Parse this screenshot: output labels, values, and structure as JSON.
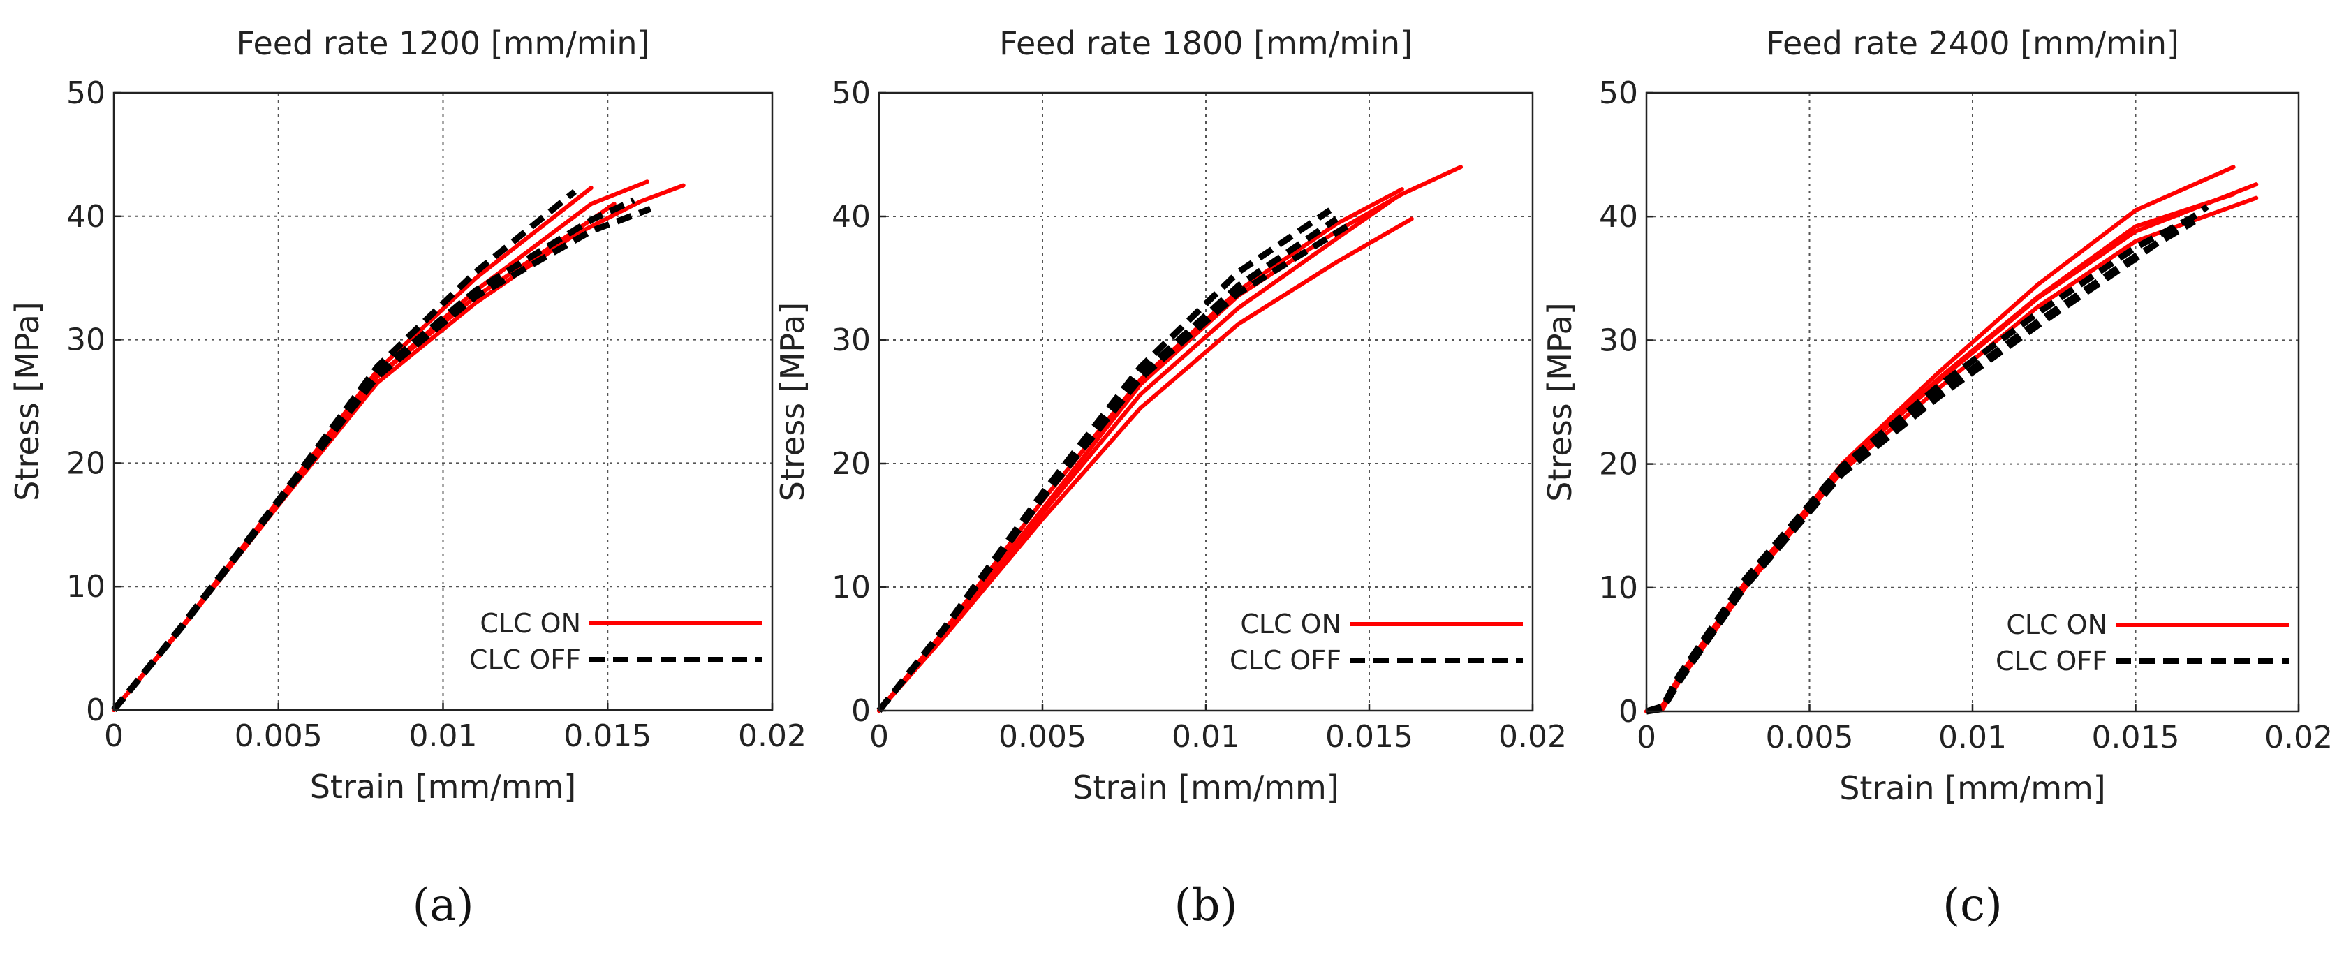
{
  "chart_data": [
    {
      "type": "line",
      "panel_label": "(a)",
      "title": "Feed rate 1200 [mm/min]",
      "xlabel": "Strain [mm/mm]",
      "ylabel": "Stress [MPa]",
      "xlim": [
        0,
        0.02
      ],
      "ylim": [
        0,
        50
      ],
      "xticks": [
        0,
        0.005,
        0.01,
        0.015,
        0.02
      ],
      "xtick_labels": [
        "0",
        "0.005",
        "0.01",
        "0.015",
        "0.02"
      ],
      "yticks": [
        0,
        10,
        20,
        30,
        40,
        50
      ],
      "ytick_labels": [
        "0",
        "10",
        "20",
        "30",
        "40",
        "50"
      ],
      "grid": true,
      "legend": {
        "position": "bottom-right",
        "entries": [
          {
            "label": "CLC ON",
            "color": "#ff0000",
            "style": "solid"
          },
          {
            "label": "CLC OFF",
            "color": "#000000",
            "style": "dashed"
          }
        ]
      },
      "series": [
        {
          "name": "CLC ON",
          "color": "#ff0000",
          "style": "solid",
          "x": [
            0,
            0.002,
            0.005,
            0.008,
            0.011,
            0.0145
          ],
          "y": [
            0,
            6.5,
            17,
            27.5,
            35,
            42.3
          ]
        },
        {
          "name": "CLC ON",
          "color": "#ff0000",
          "style": "solid",
          "x": [
            0,
            0.002,
            0.005,
            0.008,
            0.011,
            0.0145,
            0.0162
          ],
          "y": [
            0,
            6.4,
            16.8,
            27,
            34,
            41,
            42.8
          ]
        },
        {
          "name": "CLC ON",
          "color": "#ff0000",
          "style": "solid",
          "x": [
            0,
            0.002,
            0.005,
            0.008,
            0.011,
            0.014,
            0.016,
            0.0173
          ],
          "y": [
            0,
            6.4,
            16.6,
            26.5,
            33,
            38.5,
            41.2,
            42.5
          ]
        },
        {
          "name": "CLC ON",
          "color": "#ff0000",
          "style": "solid",
          "x": [
            0,
            0.002,
            0.005,
            0.008,
            0.011,
            0.014,
            0.0152
          ],
          "y": [
            0,
            6.5,
            16.9,
            27,
            33.5,
            38.8,
            41
          ]
        },
        {
          "name": "CLC OFF",
          "color": "#000000",
          "style": "dashed",
          "x": [
            0,
            0.002,
            0.005,
            0.008,
            0.011,
            0.014
          ],
          "y": [
            0,
            6.6,
            17,
            27.8,
            35.5,
            42
          ]
        },
        {
          "name": "CLC OFF",
          "color": "#000000",
          "style": "dashed",
          "x": [
            0,
            0.002,
            0.005,
            0.008,
            0.011,
            0.0145,
            0.0158
          ],
          "y": [
            0,
            6.5,
            16.9,
            27.3,
            34,
            39.7,
            41.3
          ]
        },
        {
          "name": "CLC OFF",
          "color": "#000000",
          "style": "dashed",
          "x": [
            0,
            0.002,
            0.005,
            0.008,
            0.011,
            0.0145,
            0.0163
          ],
          "y": [
            0,
            6.5,
            16.8,
            27,
            33.5,
            38.8,
            40.6
          ]
        }
      ]
    },
    {
      "type": "line",
      "panel_label": "(b)",
      "title": "Feed rate 1800 [mm/min]",
      "xlabel": "Strain [mm/mm]",
      "ylabel": "Stress [MPa]",
      "xlim": [
        0,
        0.02
      ],
      "ylim": [
        0,
        50
      ],
      "xticks": [
        0,
        0.005,
        0.01,
        0.015,
        0.02
      ],
      "xtick_labels": [
        "0",
        "0.005",
        "0.01",
        "0.015",
        "0.02"
      ],
      "yticks": [
        0,
        10,
        20,
        30,
        40,
        50
      ],
      "ytick_labels": [
        "0",
        "10",
        "20",
        "30",
        "40",
        "50"
      ],
      "grid": true,
      "legend": {
        "position": "bottom-right",
        "entries": [
          {
            "label": "CLC ON",
            "color": "#ff0000",
            "style": "solid"
          },
          {
            "label": "CLC OFF",
            "color": "#000000",
            "style": "dashed"
          }
        ]
      },
      "series": [
        {
          "name": "CLC ON",
          "color": "#ff0000",
          "style": "solid",
          "x": [
            0,
            0.002,
            0.005,
            0.008,
            0.011,
            0.014,
            0.0163
          ],
          "y": [
            0,
            6,
            15.5,
            24.5,
            31.3,
            36.3,
            39.8
          ]
        },
        {
          "name": "CLC ON",
          "color": "#ff0000",
          "style": "solid",
          "x": [
            0,
            0.002,
            0.005,
            0.008,
            0.011,
            0.014,
            0.016,
            0.0178
          ],
          "y": [
            0,
            6.3,
            16.3,
            26.4,
            33.6,
            38.8,
            41.8,
            44
          ]
        },
        {
          "name": "CLC ON",
          "color": "#ff0000",
          "style": "solid",
          "x": [
            0,
            0.002,
            0.005,
            0.008,
            0.011,
            0.014,
            0.0158
          ],
          "y": [
            0,
            6.2,
            16,
            25.6,
            32.6,
            38.2,
            41.5
          ]
        },
        {
          "name": "CLC ON",
          "color": "#ff0000",
          "style": "solid",
          "x": [
            0,
            0.002,
            0.005,
            0.008,
            0.011,
            0.014,
            0.016
          ],
          "y": [
            0,
            6.5,
            17,
            26.8,
            34,
            39.4,
            42.2
          ]
        },
        {
          "name": "CLC OFF",
          "color": "#000000",
          "style": "dashed",
          "x": [
            0,
            0.002,
            0.005,
            0.008,
            0.011,
            0.0138
          ],
          "y": [
            0,
            6.7,
            17.6,
            27.8,
            35.5,
            40.5
          ]
        },
        {
          "name": "CLC OFF",
          "color": "#000000",
          "style": "dashed",
          "x": [
            0,
            0.002,
            0.005,
            0.008,
            0.011,
            0.014
          ],
          "y": [
            0,
            6.6,
            17.3,
            27.2,
            34.4,
            39.8
          ]
        },
        {
          "name": "CLC OFF",
          "color": "#000000",
          "style": "dashed",
          "x": [
            0,
            0.002,
            0.005,
            0.008,
            0.011,
            0.0145
          ],
          "y": [
            0,
            6.6,
            17.2,
            26.9,
            33.8,
            39.5
          ]
        }
      ]
    },
    {
      "type": "line",
      "panel_label": "(c)",
      "title": "Feed rate 2400 [mm/min]",
      "xlabel": "Strain [mm/mm]",
      "ylabel": "Stress [MPa]",
      "xlim": [
        0,
        0.02
      ],
      "ylim": [
        0,
        50
      ],
      "xticks": [
        0,
        0.005,
        0.01,
        0.015,
        0.02
      ],
      "xtick_labels": [
        "0",
        "0.005",
        "0.01",
        "0.015",
        "0.02"
      ],
      "yticks": [
        0,
        10,
        20,
        30,
        40,
        50
      ],
      "ytick_labels": [
        "0",
        "10",
        "20",
        "30",
        "40",
        "50"
      ],
      "grid": true,
      "legend": {
        "position": "bottom-right",
        "entries": [
          {
            "label": "CLC ON",
            "color": "#ff0000",
            "style": "solid"
          },
          {
            "label": "CLC OFF",
            "color": "#000000",
            "style": "dashed"
          }
        ]
      },
      "series": [
        {
          "name": "CLC ON",
          "color": "#ff0000",
          "style": "solid",
          "x": [
            0,
            0.0005,
            0.001,
            0.003,
            0.006,
            0.009,
            0.012,
            0.015,
            0.018
          ],
          "y": [
            0,
            0.3,
            2.5,
            10,
            20,
            27.5,
            34.5,
            40.5,
            44
          ]
        },
        {
          "name": "CLC ON",
          "color": "#ff0000",
          "style": "solid",
          "x": [
            0,
            0.0005,
            0.001,
            0.003,
            0.006,
            0.009,
            0.012,
            0.015,
            0.0187
          ],
          "y": [
            0,
            0.4,
            2.8,
            10.3,
            19.8,
            26.8,
            33.4,
            38.8,
            42.6
          ]
        },
        {
          "name": "CLC ON",
          "color": "#ff0000",
          "style": "solid",
          "x": [
            0,
            0.0005,
            0.001,
            0.003,
            0.006,
            0.009,
            0.012,
            0.015,
            0.0187
          ],
          "y": [
            0,
            0.2,
            2.4,
            9.9,
            19.4,
            26.2,
            32.7,
            38,
            41.5
          ]
        },
        {
          "name": "CLC ON",
          "color": "#ff0000",
          "style": "solid",
          "x": [
            0,
            0.0005,
            0.001,
            0.003,
            0.006,
            0.009,
            0.012,
            0.015,
            0.018
          ],
          "y": [
            0,
            0.5,
            2.8,
            10.2,
            19.8,
            27,
            33.5,
            39.2,
            41.8
          ]
        },
        {
          "name": "CLC OFF",
          "color": "#000000",
          "style": "dashed",
          "x": [
            0,
            0.0005,
            0.001,
            0.003,
            0.006,
            0.009,
            0.012,
            0.015,
            0.0168
          ],
          "y": [
            0,
            0.3,
            2.6,
            10.3,
            19.5,
            25.8,
            31.5,
            36.8,
            39.6
          ]
        },
        {
          "name": "CLC OFF",
          "color": "#000000",
          "style": "dashed",
          "x": [
            0,
            0.0005,
            0.001,
            0.003,
            0.006,
            0.009,
            0.012,
            0.015,
            0.017
          ],
          "y": [
            0,
            0.4,
            2.9,
            10.6,
            19.8,
            26.4,
            32.2,
            37.5,
            40.3
          ]
        },
        {
          "name": "CLC OFF",
          "color": "#000000",
          "style": "dashed",
          "x": [
            0,
            0.0005,
            0.001,
            0.003,
            0.006,
            0.009,
            0.012,
            0.015,
            0.0172
          ],
          "y": [
            0,
            0.2,
            2.4,
            10,
            19.2,
            25.5,
            31.2,
            36.6,
            40.8
          ]
        }
      ]
    }
  ]
}
